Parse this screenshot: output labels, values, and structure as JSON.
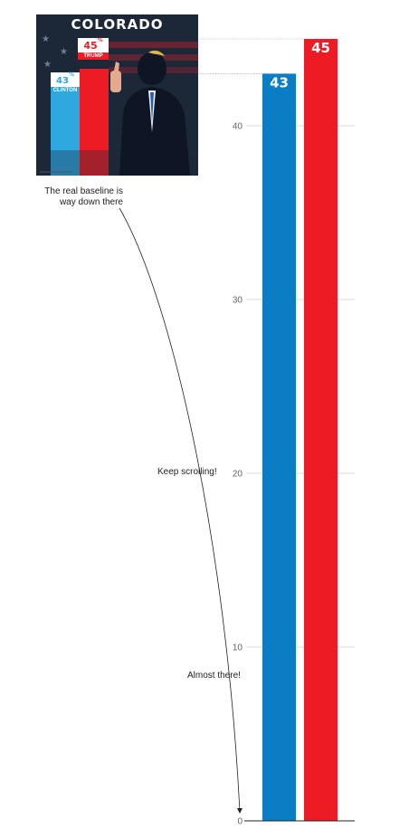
{
  "chart_data": {
    "type": "bar",
    "categories": [
      "Clinton",
      "Trump"
    ],
    "values": [
      43,
      45
    ],
    "colors": [
      "#0a7dc4",
      "#ed1c24"
    ],
    "data_labels": [
      "43",
      "45"
    ],
    "yticks": [
      0,
      10,
      20,
      30,
      40
    ],
    "ylim": [
      0,
      45
    ],
    "grid": true,
    "title": "",
    "xlabel": "",
    "ylabel": ""
  },
  "annotations": {
    "baseline_note_line1": "The real baseline is",
    "baseline_note_line2": "way down there",
    "keep_scrolling": "Keep scrolling!",
    "almost_there": "Almost there!"
  },
  "poster": {
    "state": "COLORADO",
    "trump_value": "45",
    "trump_pct": "%",
    "trump_name": "TRUMP",
    "clinton_value": "43",
    "clinton_pct": "%",
    "clinton_name": "CLINTON",
    "colors": {
      "background": "#1c2738",
      "red": "#ed1c24",
      "blue": "#2fa8e0"
    }
  }
}
